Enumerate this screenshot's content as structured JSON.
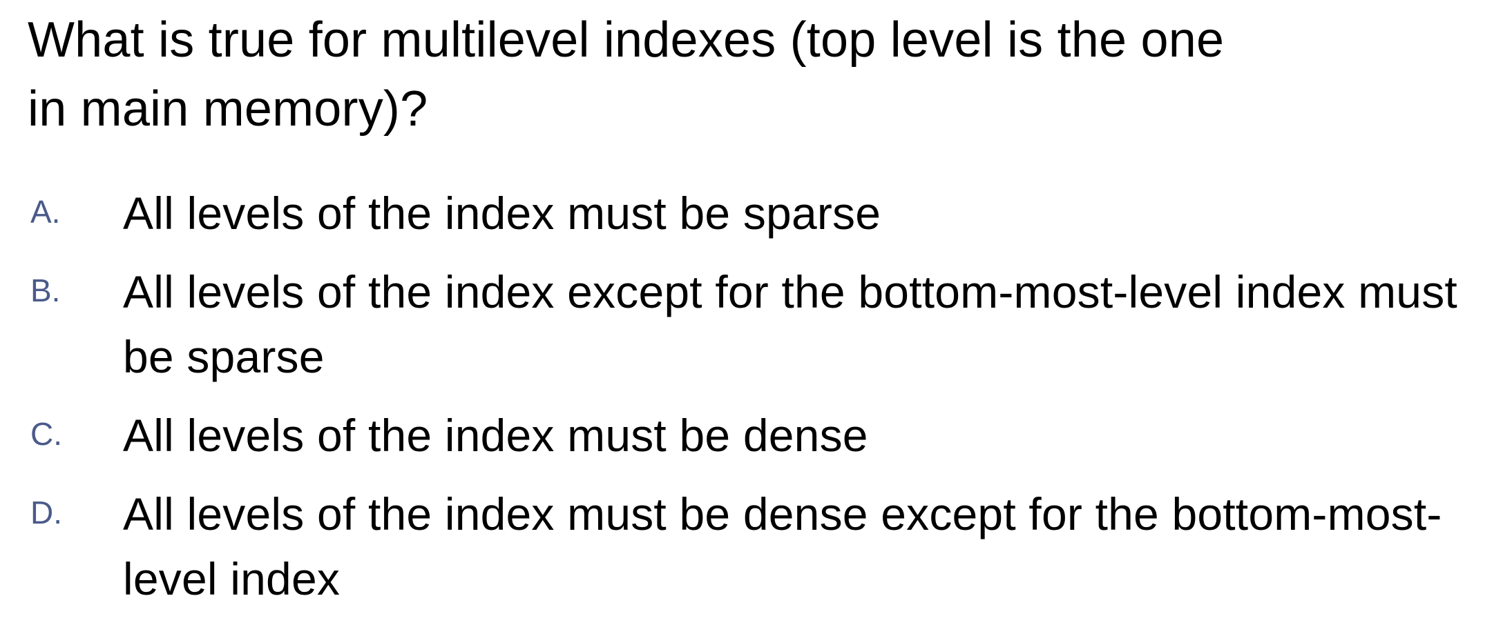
{
  "question": {
    "line1": "What is true for multilevel indexes (top level is the one",
    "line2": "in main memory)?"
  },
  "options": [
    {
      "letter": "A.",
      "text": "All levels of the index must be sparse"
    },
    {
      "letter": "B.",
      "text": "All levels of the index except for the bottom-most-level index must be sparse"
    },
    {
      "letter": "C.",
      "text": "All levels of the index must be dense"
    },
    {
      "letter": "D.",
      "text": "All levels of the index must be dense except for the bottom-most-level index"
    }
  ],
  "colors": {
    "text": "#000000",
    "option_letter": "#4a5a8a",
    "background": "#ffffff"
  }
}
